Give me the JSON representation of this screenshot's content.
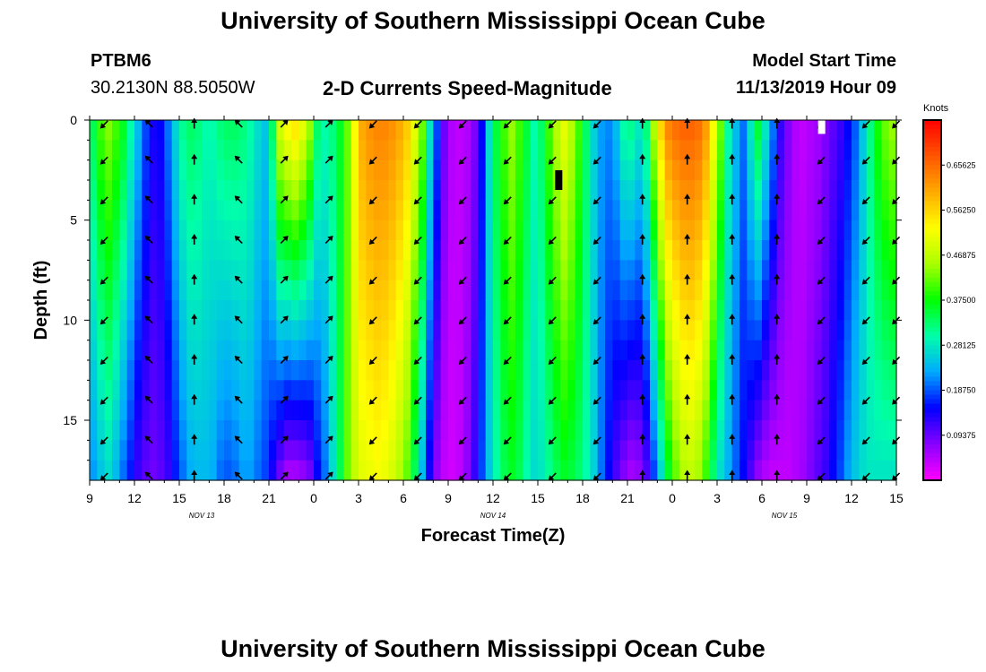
{
  "header": {
    "title": "University of Southern Mississippi Ocean Cube",
    "station_id": "PTBM6",
    "station_coords": "30.2130N 88.5050W",
    "plot_title": "2-D Currents Speed-Magnitude",
    "model_start_label": "Model Start Time",
    "model_start_value": "11/13/2019 Hour 09"
  },
  "footer": {
    "title": "University of Southern Mississippi Ocean Cube"
  },
  "chart_data": {
    "type": "heatmap",
    "title": "2-D Currents Speed-Magnitude",
    "xlabel": "Forecast Time(Z)",
    "ylabel": "Depth (ft)",
    "units": "Knots",
    "x_range_hours_from_start": [
      0,
      54
    ],
    "y_range_ft": [
      0,
      18
    ],
    "y_inverted": true,
    "x_ticks": [
      "9",
      "12",
      "15",
      "18",
      "21",
      "0",
      "3",
      "6",
      "9",
      "12",
      "15",
      "18",
      "21",
      "0",
      "3",
      "6",
      "9",
      "12",
      "15"
    ],
    "y_ticks": [
      "0",
      "5",
      "10",
      "15"
    ],
    "date_labels": [
      {
        "text": "NOV  13",
        "at_hour": 7.5
      },
      {
        "text": "NOV  14",
        "at_hour": 27
      },
      {
        "text": "NOV  15",
        "at_hour": 46.5
      }
    ],
    "colorbar": {
      "min": 0,
      "max": 0.75,
      "labels": [
        "0.65625",
        "0.56250",
        "0.46875",
        "0.37500",
        "0.28125",
        "0.18750",
        "0.09375"
      ],
      "colors": [
        "#ff00ff",
        "#8800ff",
        "#0000ff",
        "#00aaff",
        "#00ffaa",
        "#00ff00",
        "#aaff00",
        "#ffff00",
        "#ffaa00",
        "#ff5500",
        "#ff0000"
      ]
    },
    "speed_columns": {
      "hours": [
        0,
        0.5,
        1,
        1.5,
        2,
        2.5,
        3,
        3.5,
        4,
        4.5,
        5,
        5.5,
        6,
        6.5,
        7,
        7.5,
        8,
        8.5,
        9,
        9.5,
        10,
        10.5,
        11,
        11.5,
        12,
        12.5,
        13,
        13.5,
        14,
        14.5,
        15,
        15.5,
        16,
        16.5,
        17,
        17.5,
        18,
        18.5,
        19,
        19.5,
        20,
        20.5,
        21,
        21.5,
        22,
        22.5,
        23,
        23.5,
        24,
        24.5,
        25,
        25.5,
        26,
        26.5,
        27,
        27.5,
        28,
        28.5,
        29,
        29.5,
        30,
        30.5,
        31,
        31.5,
        32,
        32.5,
        33,
        33.5,
        34,
        34.5,
        35,
        35.5,
        36,
        36.5,
        37,
        37.5,
        38,
        38.5,
        39,
        39.5,
        40,
        40.5,
        41,
        41.5,
        42,
        42.5,
        43,
        43.5,
        44,
        44.5,
        45,
        45.5,
        46,
        46.5,
        47,
        47.5,
        48,
        48.5,
        49,
        49.5,
        50,
        50.5,
        51,
        51.5,
        52,
        52.5,
        53,
        53.5,
        54
      ],
      "surface": [
        0.34,
        0.4,
        0.43,
        0.4,
        0.36,
        0.3,
        0.24,
        0.18,
        0.14,
        0.15,
        0.2,
        0.26,
        0.31,
        0.33,
        0.32,
        0.3,
        0.3,
        0.32,
        0.33,
        0.33,
        0.32,
        0.3,
        0.27,
        0.25,
        0.33,
        0.48,
        0.52,
        0.54,
        0.5,
        0.44,
        0.33,
        0.3,
        0.32,
        0.36,
        0.42,
        0.52,
        0.6,
        0.62,
        0.63,
        0.63,
        0.62,
        0.6,
        0.57,
        0.5,
        0.42,
        0.28,
        0.18,
        0.09,
        0.05,
        0.04,
        0.05,
        0.08,
        0.15,
        0.27,
        0.35,
        0.4,
        0.44,
        0.4,
        0.35,
        0.3,
        0.33,
        0.4,
        0.46,
        0.5,
        0.46,
        0.4,
        0.33,
        0.26,
        0.22,
        0.21,
        0.24,
        0.3,
        0.31,
        0.28,
        0.32,
        0.45,
        0.56,
        0.63,
        0.65,
        0.66,
        0.66,
        0.65,
        0.61,
        0.52,
        0.42,
        0.3,
        0.24,
        0.2,
        0.28,
        0.35,
        0.28,
        0.2,
        0.12,
        0.08,
        0.05,
        0.04,
        0.05,
        0.06,
        0.08,
        0.1,
        0.12,
        0.15,
        0.19,
        0.25,
        0.32,
        0.38,
        0.42,
        0.44,
        0.43
      ],
      "bottom": [
        0.22,
        0.25,
        0.27,
        0.24,
        0.2,
        0.16,
        0.12,
        0.1,
        0.09,
        0.1,
        0.12,
        0.16,
        0.2,
        0.23,
        0.24,
        0.24,
        0.23,
        0.2,
        0.19,
        0.2,
        0.22,
        0.22,
        0.2,
        0.18,
        0.14,
        0.09,
        0.06,
        0.06,
        0.07,
        0.09,
        0.15,
        0.2,
        0.27,
        0.34,
        0.42,
        0.47,
        0.5,
        0.51,
        0.52,
        0.51,
        0.49,
        0.46,
        0.42,
        0.34,
        0.24,
        0.14,
        0.07,
        0.04,
        0.03,
        0.04,
        0.07,
        0.12,
        0.18,
        0.25,
        0.3,
        0.34,
        0.36,
        0.34,
        0.3,
        0.27,
        0.28,
        0.31,
        0.34,
        0.36,
        0.35,
        0.33,
        0.3,
        0.26,
        0.2,
        0.15,
        0.11,
        0.08,
        0.06,
        0.07,
        0.11,
        0.18,
        0.27,
        0.36,
        0.42,
        0.46,
        0.47,
        0.45,
        0.4,
        0.33,
        0.27,
        0.23,
        0.19,
        0.15,
        0.11,
        0.07,
        0.05,
        0.04,
        0.04,
        0.04,
        0.05,
        0.06,
        0.08,
        0.1,
        0.12,
        0.15,
        0.18,
        0.22,
        0.25,
        0.27,
        0.28,
        0.28,
        0.28,
        0.28,
        0.28
      ]
    },
    "arrow_columns_hours": [
      1,
      4,
      7,
      10,
      13,
      16,
      19,
      22,
      25,
      28,
      31,
      34,
      37,
      40,
      43,
      46,
      49,
      52,
      54
    ],
    "arrow_directions_deg": [
      225,
      315,
      0,
      315,
      45,
      45,
      225,
      225,
      225,
      225,
      225,
      225,
      0,
      0,
      0,
      0,
      225,
      225,
      225
    ],
    "annotations": [
      {
        "type": "marker",
        "color": "#000000",
        "hour": 31.4,
        "depth_ft": 3.0
      },
      {
        "type": "marker",
        "color": "#ffffff",
        "hour": 49.0,
        "depth_ft": 0.2
      }
    ]
  }
}
